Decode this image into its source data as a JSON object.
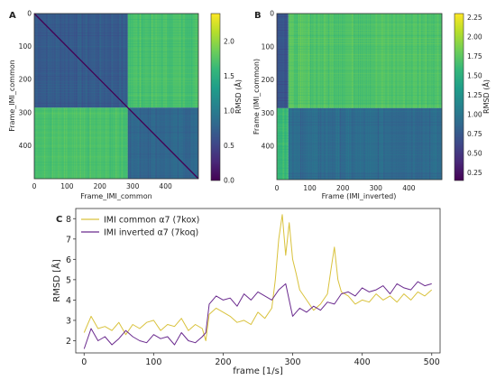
{
  "panels": {
    "a": {
      "letter": "A",
      "xlabel": "Frame_IMI_common",
      "ylabel": "Frame_IMI_common",
      "xticks": [
        "0",
        "100",
        "200",
        "300",
        "400"
      ],
      "yticks": [
        "0",
        "100",
        "200",
        "300",
        "400"
      ],
      "cbar_label": "RMSD (Å)",
      "cbar_ticks": [
        "0.0",
        "0.5",
        "1.0",
        "1.5",
        "2.0"
      ]
    },
    "b": {
      "letter": "B",
      "xlabel": "Frame (IMI_inverted)",
      "ylabel": "Frame (IMI_common)",
      "xticks": [
        "0",
        "100",
        "200",
        "300",
        "400"
      ],
      "yticks": [
        "0",
        "100",
        "200",
        "300",
        "400"
      ],
      "cbar_label": "RMSD (Å)",
      "cbar_ticks": [
        "0.25",
        "0.50",
        "0.75",
        "1.00",
        "1.25",
        "1.50",
        "1.75",
        "2.00",
        "2.25"
      ]
    },
    "c": {
      "letter": "C",
      "xlabel": "frame [1/s]",
      "ylabel": "RMSD [Å]",
      "xticks": [
        "0",
        "100",
        "200",
        "300",
        "400",
        "500"
      ],
      "yticks": [
        "2",
        "3",
        "4",
        "5",
        "6",
        "7",
        "8"
      ]
    }
  },
  "colors": {
    "common": "#d9c23c",
    "inverted": "#6a2a8e",
    "viridis": [
      "#440154",
      "#482878",
      "#3e4989",
      "#31688e",
      "#26828e",
      "#1f9e89",
      "#35b779",
      "#6ece58",
      "#b5de2b",
      "#fde725"
    ]
  },
  "chart_data": [
    {
      "type": "heatmap",
      "panel": "A",
      "title": "",
      "xlabel": "Frame_IMI_common",
      "ylabel": "Frame_IMI_common",
      "xlim": [
        0,
        500
      ],
      "ylim": [
        500,
        0
      ],
      "colorbar": {
        "label": "RMSD (Å)",
        "range": [
          0,
          2.4
        ]
      },
      "blocks": [
        {
          "x": [
            0,
            285
          ],
          "y": [
            0,
            285
          ],
          "value": 0.7
        },
        {
          "x": [
            285,
            500
          ],
          "y": [
            0,
            285
          ],
          "value": 1.7
        },
        {
          "x": [
            0,
            285
          ],
          "y": [
            285,
            500
          ],
          "value": 1.7
        },
        {
          "x": [
            285,
            500
          ],
          "y": [
            285,
            500
          ],
          "value": 0.8
        }
      ],
      "diagonal_value": 0.0
    },
    {
      "type": "heatmap",
      "panel": "B",
      "title": "",
      "xlabel": "Frame (IMI_inverted)",
      "ylabel": "Frame (IMI_common)",
      "xlim": [
        0,
        500
      ],
      "ylim": [
        500,
        0
      ],
      "colorbar": {
        "label": "RMSD (Å)",
        "range": [
          0.15,
          2.3
        ]
      },
      "blocks": [
        {
          "x": [
            0,
            35
          ],
          "y": [
            0,
            285
          ],
          "value": 0.7
        },
        {
          "x": [
            35,
            500
          ],
          "y": [
            0,
            285
          ],
          "value": 1.7
        },
        {
          "x": [
            0,
            35
          ],
          "y": [
            285,
            500
          ],
          "value": 1.6
        },
        {
          "x": [
            35,
            500
          ],
          "y": [
            285,
            500
          ],
          "value": 0.9
        }
      ]
    },
    {
      "type": "line",
      "panel": "C",
      "title": "",
      "xlabel": "frame [1/s]",
      "ylabel": "RMSD [Å]",
      "xlim": [
        -12,
        512
      ],
      "ylim": [
        1.4,
        8.5
      ],
      "legend": "top-left",
      "series": [
        {
          "name": "IMI common α7 (7kox)",
          "color": "#d9c23c",
          "x": [
            0,
            10,
            20,
            30,
            40,
            50,
            60,
            70,
            80,
            90,
            100,
            110,
            120,
            130,
            140,
            150,
            160,
            170,
            175,
            180,
            190,
            200,
            210,
            220,
            230,
            240,
            250,
            260,
            270,
            275,
            280,
            285,
            290,
            295,
            300,
            305,
            310,
            320,
            330,
            340,
            350,
            355,
            360,
            365,
            370,
            380,
            390,
            400,
            410,
            420,
            430,
            440,
            450,
            460,
            470,
            480,
            490,
            500
          ],
          "y": [
            2.4,
            3.2,
            2.6,
            2.7,
            2.5,
            2.9,
            2.3,
            2.8,
            2.6,
            2.9,
            3.0,
            2.5,
            2.8,
            2.7,
            3.1,
            2.5,
            2.8,
            2.6,
            2.0,
            3.3,
            3.6,
            3.4,
            3.2,
            2.9,
            3.0,
            2.8,
            3.4,
            3.1,
            3.6,
            5.0,
            7.0,
            8.2,
            6.2,
            7.8,
            6.0,
            5.3,
            4.5,
            4.0,
            3.5,
            3.8,
            4.3,
            5.5,
            6.6,
            5.0,
            4.4,
            4.2,
            3.8,
            4.0,
            3.9,
            4.3,
            4.0,
            4.2,
            3.9,
            4.3,
            4.0,
            4.4,
            4.2,
            4.5
          ]
        },
        {
          "name": "IMI inverted α7 (7koq)",
          "color": "#6a2a8e",
          "x": [
            0,
            10,
            20,
            30,
            40,
            50,
            60,
            70,
            80,
            90,
            100,
            110,
            120,
            130,
            140,
            150,
            160,
            170,
            175,
            180,
            190,
            200,
            210,
            220,
            230,
            240,
            250,
            260,
            270,
            280,
            290,
            300,
            310,
            320,
            330,
            340,
            350,
            360,
            370,
            380,
            390,
            400,
            410,
            420,
            430,
            440,
            450,
            460,
            470,
            480,
            490,
            500
          ],
          "y": [
            1.6,
            2.6,
            2.0,
            2.2,
            1.8,
            2.1,
            2.5,
            2.2,
            2.0,
            1.9,
            2.3,
            2.1,
            2.2,
            1.8,
            2.4,
            2.0,
            1.9,
            2.2,
            2.4,
            3.8,
            4.2,
            4.0,
            4.1,
            3.7,
            4.3,
            4.0,
            4.4,
            4.2,
            4.0,
            4.5,
            4.8,
            3.2,
            3.6,
            3.4,
            3.7,
            3.5,
            3.9,
            3.8,
            4.3,
            4.4,
            4.2,
            4.6,
            4.4,
            4.5,
            4.7,
            4.3,
            4.8,
            4.6,
            4.5,
            4.9,
            4.7,
            4.8
          ]
        }
      ]
    }
  ]
}
